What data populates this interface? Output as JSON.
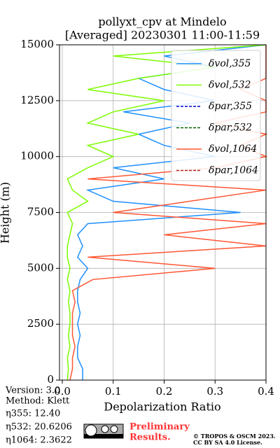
{
  "chart_data": {
    "type": "line",
    "title": "pollyxt_cpv at Mindelo",
    "subtitle": "[Averaged] 20230301 11:00-11:59",
    "x_label": "Depolarization Ratio",
    "y_label": "Height (m)",
    "xlim": [
      0,
      0.4
    ],
    "xticks": [
      {
        "value": 0,
        "label": "0.0"
      },
      0.1,
      0.2,
      0.3,
      0.4
    ],
    "ylim": [
      0,
      15000
    ],
    "yticks": [
      0,
      2500,
      5000,
      7500,
      10000,
      12500,
      15000
    ],
    "grid": true,
    "legend": "upper right",
    "y": [
      0,
      500,
      1000,
      1500,
      2000,
      2500,
      3000,
      3500,
      4000,
      4500,
      5000,
      5500,
      6000,
      6500,
      7000,
      7500,
      8000,
      8500,
      9000,
      9500,
      10000,
      10500,
      11000,
      11500,
      12000,
      12500,
      13000,
      13500,
      14000,
      14500,
      15000
    ],
    "series": [
      {
        "name": "δvol,355",
        "color": "#1e90ff",
        "dash": false,
        "values": [
          0.04,
          0.04,
          0.03,
          0.03,
          0.035,
          0.03,
          0.035,
          0.03,
          0.03,
          0.035,
          0.05,
          0.03,
          0.04,
          0.03,
          0.05,
          0.35,
          0.1,
          0.05,
          0.2,
          0.1,
          0.3,
          0.2,
          0.15,
          0.25,
          0.12,
          0.3,
          0.2,
          0.15,
          0.3,
          0.2,
          0.4
        ]
      },
      {
        "name": "δvol,532",
        "color": "#7cfc00",
        "dash": false,
        "values": [
          0.01,
          0.012,
          0.01,
          0.015,
          0.012,
          0.015,
          0.015,
          0.012,
          0.015,
          0.01,
          0.015,
          0.01,
          0.01,
          0.015,
          0.02,
          0.01,
          0.05,
          0.02,
          0.01,
          0.05,
          0.1,
          0.05,
          0.15,
          0.05,
          0.1,
          0.2,
          0.05,
          0.15,
          0.3,
          0.1,
          0.4
        ]
      },
      {
        "name": "δpar,355",
        "color": "#0000cd",
        "dash": true,
        "values": [
          null,
          null,
          null,
          null,
          null,
          null,
          null,
          null,
          null,
          null,
          null,
          null,
          null,
          null,
          null,
          null,
          null,
          null,
          null,
          null,
          null,
          null,
          null,
          null,
          null,
          null,
          null,
          null,
          null,
          null,
          null
        ]
      },
      {
        "name": "δpar,532",
        "color": "#006400",
        "dash": true,
        "values": [
          null,
          null,
          null,
          null,
          null,
          null,
          null,
          null,
          null,
          null,
          null,
          null,
          null,
          null,
          null,
          null,
          null,
          null,
          null,
          null,
          null,
          null,
          null,
          null,
          null,
          null,
          null,
          null,
          null,
          null,
          null
        ]
      },
      {
        "name": "δvol,1064",
        "color": "#ff5733",
        "dash": false,
        "values": [
          0.015,
          0.02,
          0.02,
          0.025,
          0.02,
          0.02,
          0.02,
          0.025,
          0.02,
          0.06,
          0.3,
          0.05,
          0.4,
          0.2,
          0.4,
          0.1,
          0.25,
          0.4,
          0.05,
          0.3,
          0.4,
          0.35,
          0.4,
          0.3,
          0.4,
          0.4,
          0.35,
          0.4,
          0.4,
          0.4,
          0.4
        ]
      },
      {
        "name": "δpar,1064",
        "color": "#b22222",
        "dash": true,
        "values": [
          null,
          null,
          null,
          null,
          null,
          null,
          null,
          null,
          null,
          null,
          null,
          null,
          null,
          null,
          null,
          null,
          null,
          null,
          null,
          null,
          null,
          null,
          null,
          null,
          null,
          null,
          null,
          null,
          null,
          null,
          null
        ]
      }
    ]
  },
  "footer": {
    "version": "Version: 3.0",
    "method": "Method: Klett",
    "eta355": "η355:  12.40",
    "eta532": "η532: 20.6206",
    "eta1064": "η1064: 2.3622",
    "notice": "Preliminary",
    "notice2": "Results.",
    "copyright": "© TROPOS & OSCM 2023.",
    "license": "CC BY SA 4.0 License."
  }
}
